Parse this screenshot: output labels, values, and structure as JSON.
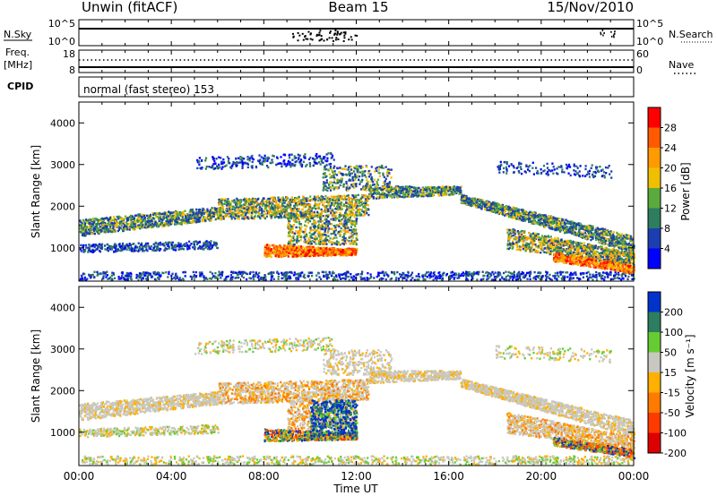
{
  "header": {
    "station": "Unwin (fitACF)",
    "beam": "Beam 15",
    "date": "15/Nov/2010"
  },
  "strips": {
    "nsky_label": "N.Sky",
    "nsky_ticks": [
      "10^5",
      "10^0"
    ],
    "nsearch_label": "N.Search",
    "nsearch_ticks": [
      "10^5",
      "10^0"
    ],
    "freq_label": "Freq.",
    "freq_unit": "[MHz]",
    "freq_ticks": [
      "18",
      "8"
    ],
    "nave_label": "Nave",
    "nave_ticks": [
      "60",
      "0"
    ],
    "cpid_label": "CPID",
    "cpid_text": "normal (fast stereo) 153"
  },
  "chart_data": [
    {
      "type": "heatmap",
      "name": "power",
      "ylabel": "Slant Range [km]",
      "yticks": [
        "4000",
        "3000",
        "2000",
        "1000"
      ],
      "ylim": [
        200,
        4500
      ],
      "xlim_hours": [
        0,
        24
      ],
      "colorbar_label": "Power [dB]",
      "colorbar_ticks": [
        "28",
        "24",
        "20",
        "16",
        "12",
        "8",
        "4"
      ],
      "colorbar_colors": [
        "#ff0000",
        "#ff5a00",
        "#ff9a00",
        "#f0c000",
        "#5aaa3c",
        "#2e7d60",
        "#1b3fb0",
        "#0000ff"
      ]
    },
    {
      "type": "heatmap",
      "name": "velocity",
      "ylabel": "Slant Range [km]",
      "yticks": [
        "4000",
        "3000",
        "2000",
        "1000"
      ],
      "ylim": [
        200,
        4500
      ],
      "xlim_hours": [
        0,
        24
      ],
      "colorbar_label": "Velocity [m s⁻¹]",
      "colorbar_ticks": [
        "200",
        "100",
        "50",
        "15",
        "-15",
        "-50",
        "-100",
        "-200"
      ],
      "colorbar_colors": [
        "#0033cc",
        "#2e7d60",
        "#66cc33",
        "#c8c8c0",
        "#ffb000",
        "#ff7a00",
        "#ff3a00",
        "#dd0000"
      ]
    }
  ],
  "xaxis": {
    "ticks": [
      "00:00",
      "04:00",
      "08:00",
      "12:00",
      "16:00",
      "20:00",
      "00:00"
    ],
    "label": "Time UT"
  }
}
